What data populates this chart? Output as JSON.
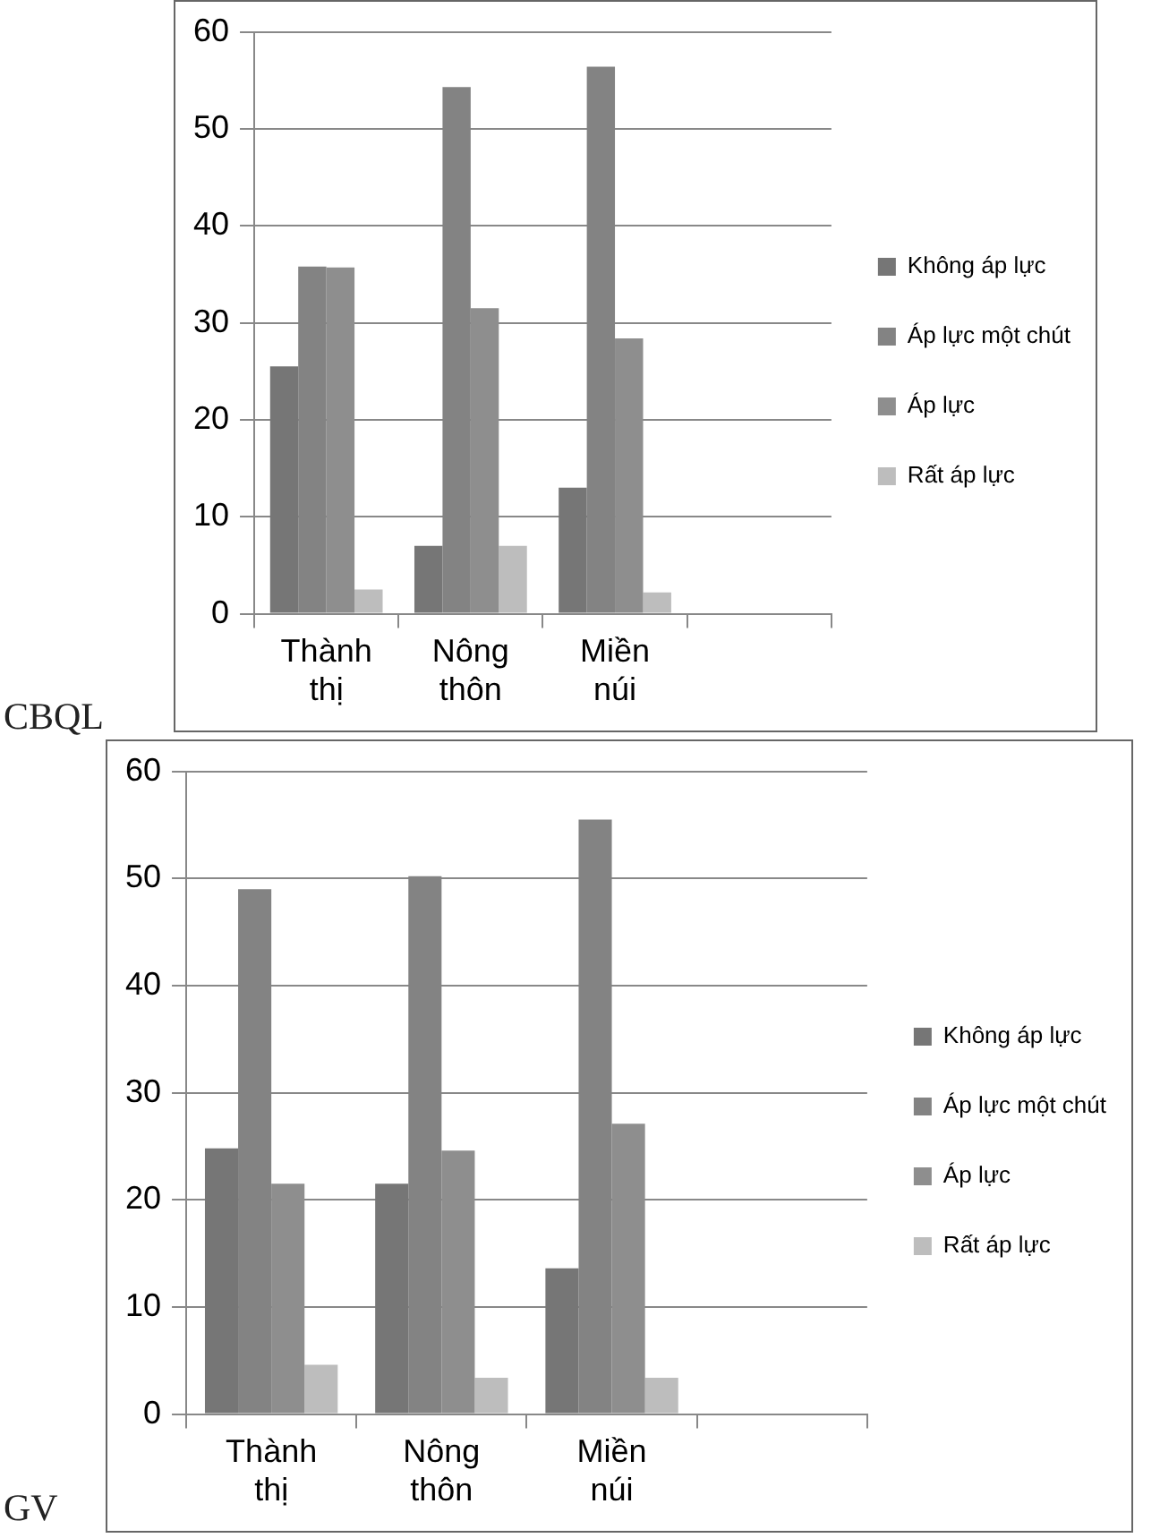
{
  "chart_data": [
    {
      "type": "bar",
      "title": "CBQL",
      "categories": [
        "Thành thị",
        "Nông thôn",
        "Miền núi",
        null
      ],
      "series": [
        {
          "name": "Không áp lực",
          "color": "#767676",
          "values": [
            25.5,
            7,
            13,
            null
          ]
        },
        {
          "name": "Áp lực một chút",
          "color": "#838383",
          "values": [
            35.8,
            54.3,
            56.4,
            null
          ]
        },
        {
          "name": "Áp lực",
          "color": "#8e8e8e",
          "values": [
            35.7,
            31.5,
            28.4,
            null
          ]
        },
        {
          "name": "Rất áp lực",
          "color": "#bdbdbd",
          "values": [
            2.5,
            7,
            2.2,
            null
          ]
        }
      ],
      "ylim": [
        0,
        60
      ],
      "yticks": [
        0,
        10,
        20,
        30,
        40,
        50,
        60
      ],
      "grid": "y",
      "legend": "right"
    },
    {
      "type": "bar",
      "title": "GV",
      "categories": [
        "Thành thị",
        "Nông thôn",
        "Miền núi",
        null
      ],
      "series": [
        {
          "name": "Không áp lực",
          "color": "#767676",
          "values": [
            24.8,
            21.5,
            13.6,
            null
          ]
        },
        {
          "name": "Áp lực một chút",
          "color": "#838383",
          "values": [
            49,
            50.2,
            55.5,
            null
          ]
        },
        {
          "name": "Áp lực",
          "color": "#8e8e8e",
          "values": [
            21.5,
            24.6,
            27.1,
            null
          ]
        },
        {
          "name": "Rất áp lực",
          "color": "#bdbdbd",
          "values": [
            4.6,
            3.4,
            3.4,
            null
          ]
        }
      ],
      "ylim": [
        0,
        60
      ],
      "yticks": [
        0,
        10,
        20,
        30,
        40,
        50,
        60
      ],
      "grid": "y",
      "legend": "right"
    }
  ]
}
